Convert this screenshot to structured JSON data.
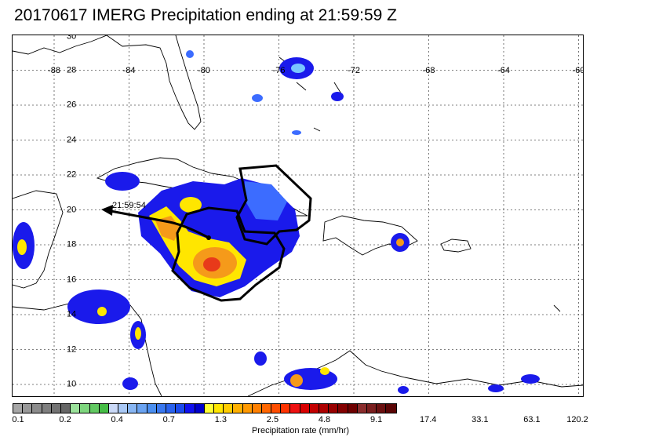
{
  "title": "20170617 IMERG Precipitation ending at 21:59:59 Z",
  "map": {
    "lat_labels": [
      "30",
      "28",
      "26",
      "24",
      "22",
      "20",
      "18",
      "16",
      "14",
      "12",
      "10"
    ],
    "lon_labels": [
      "-88",
      "-84",
      "-80",
      "-76",
      "-72",
      "-68",
      "-64",
      "-60"
    ],
    "track_time_label": "21:59:54",
    "colors": {
      "blue_dark": "#1a1aeb",
      "blue_mid": "#3c6cff",
      "blue_light": "#79c6ff",
      "yellow": "#ffe600",
      "orange": "#f59a1a",
      "red": "#e83a1a"
    }
  },
  "colorbar": {
    "colors": [
      "#a6a6a6",
      "#999999",
      "#8c8c8c",
      "#7f7f7f",
      "#737373",
      "#666666",
      "#9be29b",
      "#7ed67e",
      "#62c962",
      "#46bd46",
      "#cad9f7",
      "#a9c8f5",
      "#88b6f3",
      "#6aa3f1",
      "#4b8ff0",
      "#3a78ef",
      "#2a62ee",
      "#1b4aed",
      "#1010ee",
      "#0000cc",
      "#ffff33",
      "#ffe600",
      "#ffcc00",
      "#ffb000",
      "#ff9900",
      "#ff8000",
      "#ff6600",
      "#ff4d00",
      "#ff3300",
      "#ee1111",
      "#d90000",
      "#c30000",
      "#ad0000",
      "#980000",
      "#830000",
      "#6e0000",
      "#8a2c2c",
      "#7a1e1e",
      "#6a1010",
      "#5a0505"
    ],
    "tick_labels": [
      "0.1",
      "0.2",
      "0.4",
      "0.7",
      "1.3",
      "2.5",
      "4.8",
      "9.1",
      "17.4",
      "33.1",
      "63.1",
      "120.2"
    ],
    "label": "Precipitation rate (mm/hr)"
  }
}
